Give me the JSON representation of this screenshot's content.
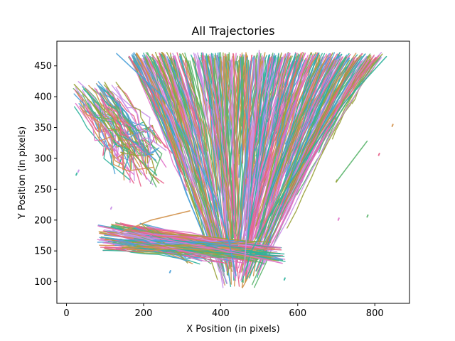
{
  "chart_data": {
    "type": "line",
    "title": "All Trajectories",
    "xlabel": "X Position (in pixels)",
    "ylabel": "Y Position (in pixels)",
    "xlim": [
      -25,
      890
    ],
    "ylim": [
      65,
      490
    ],
    "xticks": [
      0,
      200,
      400,
      600,
      800
    ],
    "yticks": [
      100,
      150,
      200,
      250,
      300,
      350,
      400,
      450
    ],
    "grid": false,
    "legend": "none",
    "colors": [
      "#e8608a",
      "#4aa0d8",
      "#2db39c",
      "#c98fe8",
      "#9aa23a",
      "#e070c8",
      "#5ab56b",
      "#d2914a"
    ],
    "main_funnel": {
      "top_y": 472,
      "top_x_range": [
        150,
        830
      ],
      "bottom_y": 90,
      "bottom_x_range": [
        395,
        490
      ]
    },
    "side_band": {
      "y_range": [
        130,
        200
      ],
      "x_range": [
        80,
        570
      ]
    },
    "representative_series": [
      {
        "x": [
          130,
          250,
          330,
          390,
          420,
          440
        ],
        "y": [
          470,
          400,
          310,
          230,
          170,
          110
        ]
      },
      {
        "x": [
          830,
          720,
          620,
          540,
          480,
          455
        ],
        "y": [
          465,
          390,
          300,
          220,
          150,
          100
        ]
      },
      {
        "x": [
          500,
          495,
          480,
          470,
          460
        ],
        "y": [
          475,
          400,
          300,
          200,
          110
        ]
      },
      {
        "x": [
          20,
          80,
          140,
          200,
          240
        ],
        "y": [
          420,
          380,
          330,
          290,
          260
        ]
      },
      {
        "x": [
          85,
          200,
          330,
          450,
          560
        ],
        "y": [
          190,
          175,
          160,
          145,
          130
        ]
      },
      {
        "x": [
          700,
          780
        ],
        "y": [
          262,
          328
        ]
      },
      {
        "x": [
          140,
          220,
          320
        ],
        "y": [
          180,
          200,
          215
        ]
      }
    ]
  }
}
